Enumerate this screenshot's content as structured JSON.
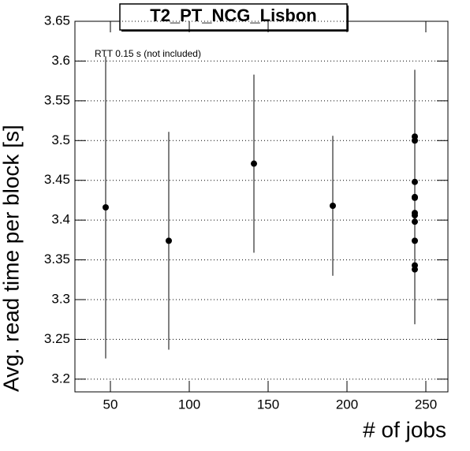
{
  "chart_data": {
    "type": "scatter",
    "title": "T2_PT_NCG_Lisbon",
    "annotation": "RTT 0.15 s (not included)",
    "x_label": "# of jobs",
    "y_label": "Avg. read time per block [s]",
    "x": [
      47,
      87,
      141,
      191,
      243,
      243,
      243,
      243,
      243,
      243,
      243,
      243,
      243,
      243,
      243
    ],
    "values": [
      3.416,
      3.374,
      3.471,
      3.418,
      3.505,
      3.5,
      3.448,
      3.429,
      3.428,
      3.409,
      3.406,
      3.398,
      3.374,
      3.343,
      3.338
    ],
    "errors": [
      0.19,
      0.137,
      0.112,
      0.088,
      null,
      null,
      null,
      0.16,
      null,
      null,
      null,
      null,
      null,
      null,
      null
    ],
    "color": "#000000",
    "xlim": [
      27.5,
      264
    ],
    "xticks": [
      50,
      100,
      150,
      200,
      250
    ],
    "ylim": [
      3.184,
      3.65
    ],
    "yticks": [
      {
        "value": 3.2,
        "label": "3.2"
      },
      3.25,
      {
        "value": 3.3,
        "label": "3.3"
      },
      3.35,
      {
        "value": 3.4,
        "label": "3.4"
      },
      3.45,
      {
        "value": 3.5,
        "label": "3.5"
      },
      3.55,
      {
        "value": 3.6,
        "label": "3.6"
      },
      3.65
    ],
    "grid": true
  }
}
